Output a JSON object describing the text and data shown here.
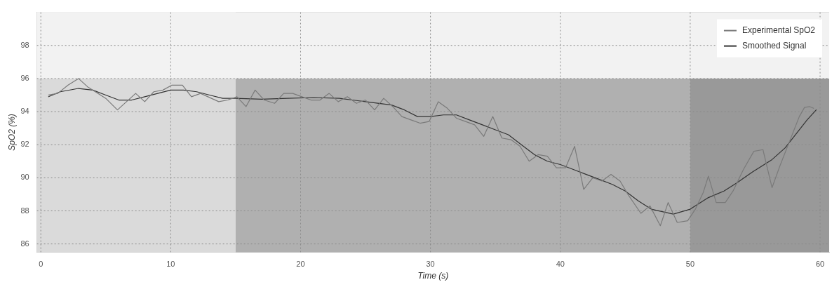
{
  "chart_data": {
    "type": "line",
    "xlabel": "Time (s)",
    "ylabel": "SpO2 (%)",
    "xlim": [
      -0.3,
      60.7
    ],
    "ylim": [
      85.5,
      100
    ],
    "xticks": [
      0,
      10,
      20,
      30,
      40,
      50,
      60
    ],
    "yticks": [
      86,
      88,
      90,
      92,
      94,
      96,
      98
    ],
    "grid": true,
    "legend": "top right",
    "marker": "none",
    "bands": [
      {
        "axis": "x",
        "from": -0.3,
        "to": 15,
        "color": "#dadada"
      },
      {
        "axis": "x",
        "from": 15,
        "to": 50,
        "color": "#b0b0b0"
      },
      {
        "axis": "x",
        "from": 50,
        "to": 60.7,
        "color": "#999999"
      },
      {
        "axis": "y",
        "from": 96,
        "to": 100,
        "color": "#f2f2f2"
      }
    ],
    "series": [
      {
        "name": "Experimental SpO2",
        "color": "#7a7a7a",
        "x": [
          0.6,
          1.3,
          2.1,
          2.9,
          3.6,
          5.0,
          5.9,
          6.6,
          7.3,
          8.0,
          8.7,
          9.4,
          10.1,
          10.9,
          11.6,
          12.3,
          13.7,
          14.4,
          15.1,
          15.8,
          16.5,
          17.2,
          18.0,
          18.7,
          19.4,
          20.1,
          20.8,
          21.5,
          22.2,
          22.9,
          23.6,
          24.3,
          25.0,
          25.7,
          26.4,
          27.1,
          27.8,
          28.5,
          29.2,
          29.9,
          30.6,
          31.3,
          32.0,
          32.7,
          33.4,
          34.1,
          34.8,
          35.5,
          36.2,
          36.9,
          37.6,
          38.3,
          39.0,
          39.7,
          40.4,
          41.1,
          41.8,
          42.5,
          43.2,
          43.9,
          44.6,
          45.2,
          46.2,
          46.9,
          47.7,
          48.3,
          49.0,
          49.8,
          50.4,
          51.0,
          51.4,
          52.0,
          52.7,
          53.3,
          54.1,
          54.9,
          55.6,
          56.3,
          56.9,
          58.4,
          58.8,
          59.2,
          59.5
        ],
        "values": [
          95.0,
          95.1,
          95.6,
          96.0,
          95.5,
          94.8,
          94.1,
          94.6,
          95.1,
          94.6,
          95.2,
          95.3,
          95.6,
          95.6,
          94.9,
          95.1,
          94.6,
          94.7,
          94.9,
          94.3,
          95.3,
          94.7,
          94.5,
          95.1,
          95.1,
          94.9,
          94.7,
          94.7,
          95.1,
          94.6,
          94.9,
          94.5,
          94.7,
          94.1,
          94.8,
          94.3,
          93.7,
          93.5,
          93.3,
          93.4,
          94.6,
          94.2,
          93.6,
          93.4,
          93.2,
          92.5,
          93.7,
          92.4,
          92.3,
          91.9,
          91.0,
          91.4,
          91.3,
          90.6,
          90.6,
          91.9,
          89.3,
          90.0,
          89.8,
          90.2,
          89.8,
          89.0,
          87.85,
          88.3,
          87.1,
          88.5,
          87.3,
          87.4,
          88.1,
          89.1,
          90.1,
          88.5,
          88.5,
          89.2,
          90.5,
          91.6,
          91.7,
          89.4,
          90.7,
          93.7,
          94.25,
          94.3,
          94.2
        ]
      },
      {
        "name": "Smoothed Signal",
        "color": "#333333",
        "x": [
          0.6,
          1.5,
          2.9,
          4.0,
          5.0,
          6.0,
          7.0,
          8.0,
          9.0,
          10.0,
          11.0,
          12.0,
          13.0,
          14.0,
          15.0,
          17.0,
          19.0,
          21.0,
          23.0,
          25.0,
          27.0,
          28.0,
          29.0,
          30.0,
          31.0,
          32.0,
          33.0,
          34.0,
          35.0,
          36.0,
          37.0,
          38.0,
          39.0,
          40.0,
          41.0,
          42.0,
          43.0,
          44.0,
          45.0,
          46.0,
          47.0,
          48.7,
          50.0,
          51.4,
          52.6,
          53.6,
          54.8,
          56.3,
          57.3,
          58.3,
          59.0,
          59.7
        ],
        "values": [
          94.9,
          95.2,
          95.4,
          95.3,
          95.0,
          94.7,
          94.7,
          94.9,
          95.1,
          95.3,
          95.3,
          95.2,
          95.0,
          94.8,
          94.8,
          94.75,
          94.8,
          94.85,
          94.8,
          94.6,
          94.4,
          94.1,
          93.7,
          93.7,
          93.8,
          93.8,
          93.5,
          93.2,
          92.9,
          92.6,
          92.0,
          91.4,
          91.0,
          90.8,
          90.5,
          90.2,
          89.9,
          89.6,
          89.2,
          88.6,
          88.1,
          87.8,
          88.1,
          88.8,
          89.2,
          89.7,
          90.35,
          91.1,
          91.8,
          92.8,
          93.5,
          94.1
        ]
      }
    ]
  }
}
